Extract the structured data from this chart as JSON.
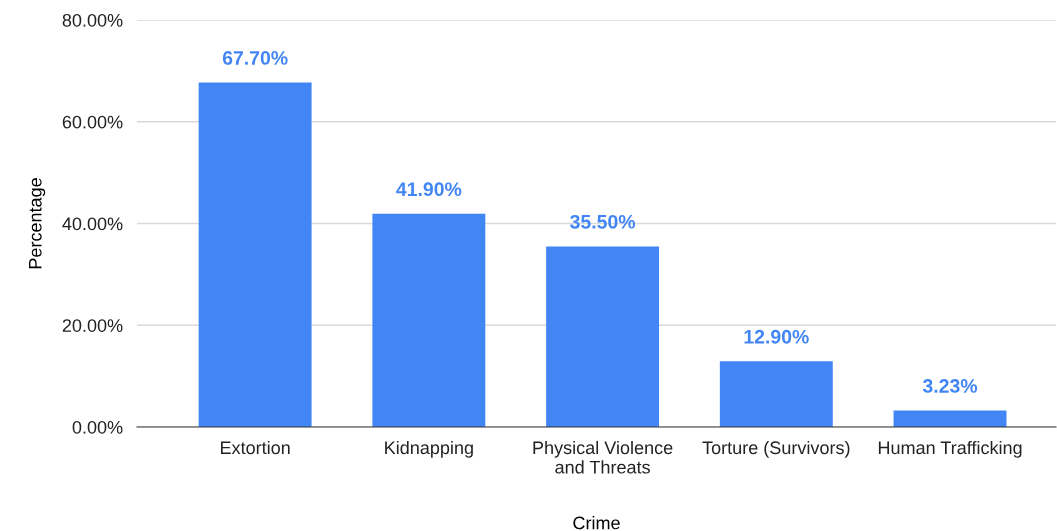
{
  "chart_data": {
    "type": "bar",
    "xlabel": "Crime",
    "ylabel": "Percentage",
    "categories": [
      "Extortion",
      "Kidnapping",
      "Physical Violence\nand Threats",
      "Torture (Survivors)",
      "Human Trafficking"
    ],
    "values": [
      67.7,
      41.9,
      35.5,
      12.9,
      3.23
    ],
    "value_labels": [
      "67.70%",
      "41.90%",
      "35.50%",
      "12.90%",
      "3.23%"
    ],
    "color": "#4285f4",
    "ylim": [
      0,
      80
    ],
    "yticks": [
      {
        "value": 0,
        "label": "0.00%"
      },
      {
        "value": 20,
        "label": "20.00%"
      },
      {
        "value": 40,
        "label": "40.00%"
      },
      {
        "value": 60,
        "label": "60.00%"
      },
      {
        "value": 80,
        "label": "80.00%"
      }
    ],
    "grid": "y",
    "legend": false
  }
}
